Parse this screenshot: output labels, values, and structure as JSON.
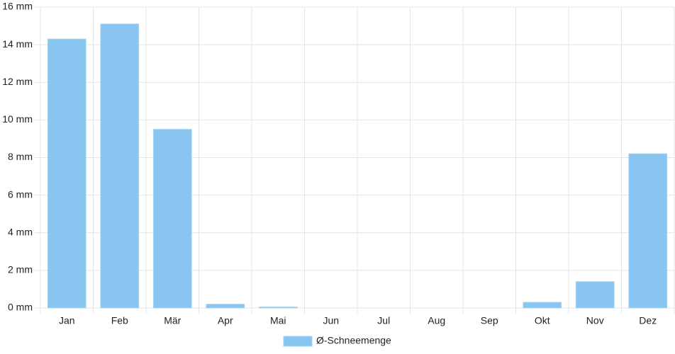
{
  "chart_data": {
    "type": "bar",
    "categories": [
      "Jan",
      "Feb",
      "Mär",
      "Apr",
      "Mai",
      "Jun",
      "Jul",
      "Aug",
      "Sep",
      "Okt",
      "Nov",
      "Dez"
    ],
    "series": [
      {
        "name": "Ø-Schneemenge",
        "color": "#88c6f1",
        "values": [
          14.3,
          15.1,
          9.5,
          0.2,
          0.05,
          0,
          0,
          0,
          0,
          0.3,
          1.4,
          8.2
        ]
      }
    ],
    "ylim": [
      0,
      16
    ],
    "yticks": [
      {
        "value": 0,
        "label": "0 mm"
      },
      {
        "value": 2,
        "label": "2 mm"
      },
      {
        "value": 4,
        "label": "4 mm"
      },
      {
        "value": 6,
        "label": "6 mm"
      },
      {
        "value": 8,
        "label": "8 mm"
      },
      {
        "value": 10,
        "label": "10 mm"
      },
      {
        "value": 12,
        "label": "12 mm"
      },
      {
        "value": 14,
        "label": "14 mm"
      },
      {
        "value": 16,
        "label": "16 mm"
      }
    ],
    "grid": true,
    "legend": "bottom"
  }
}
